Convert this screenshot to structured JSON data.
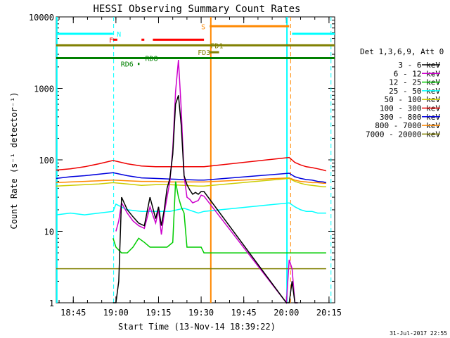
{
  "chart_data": {
    "type": "line",
    "title": "HESSI Observing Summary Count Rates",
    "xlabel": "Start Time (13-Nov-14 18:39:22)",
    "ylabel": "Count Rate (s⁻¹ detector⁻¹)",
    "ylog": true,
    "ylim": [
      1,
      10000
    ],
    "xlim_min": [
      0,
      98
    ],
    "x_ticks": [
      {
        "min": 6,
        "label": "18:45"
      },
      {
        "min": 21,
        "label": "19:00"
      },
      {
        "min": 36,
        "label": "19:15"
      },
      {
        "min": 51,
        "label": "19:30"
      },
      {
        "min": 66,
        "label": "19:45"
      },
      {
        "min": 81,
        "label": "20:00"
      },
      {
        "min": 96,
        "label": "20:15"
      }
    ],
    "y_ticks": [
      {
        "value": 1,
        "label": "1"
      },
      {
        "value": 10,
        "label": "10"
      },
      {
        "value": 100,
        "label": "100"
      },
      {
        "value": 1000,
        "label": "1000"
      },
      {
        "value": 10000,
        "label": "10000"
      }
    ],
    "legend_title": "Det 1,3,6,9, Att 0",
    "legend_placement": "right",
    "series": [
      {
        "name": "3 - 6 keV",
        "color": "#000000",
        "x": [
          20,
          21,
          22,
          23,
          25,
          27,
          29,
          31,
          33,
          35,
          36,
          37,
          38,
          39,
          40,
          41,
          42,
          43,
          44,
          45,
          46,
          47,
          48,
          49,
          50,
          51,
          52,
          81,
          82,
          83,
          84,
          85
        ],
        "y": [
          1,
          1,
          2,
          30,
          20,
          16,
          13,
          12,
          30,
          15,
          22,
          12,
          20,
          40,
          55,
          120,
          600,
          800,
          300,
          60,
          45,
          38,
          33,
          35,
          33,
          36,
          36,
          1,
          1,
          2,
          1,
          1
        ]
      },
      {
        "name": "6 - 12 keV",
        "color": "#cc00cc",
        "x": [
          21,
          22,
          23,
          25,
          27,
          29,
          31,
          33,
          35,
          36,
          37,
          38,
          39,
          40,
          41,
          42,
          43,
          44,
          45,
          46,
          47,
          48,
          49,
          50,
          51,
          52,
          81,
          82,
          83,
          84,
          85
        ],
        "y": [
          10,
          14,
          25,
          18,
          14,
          12,
          11,
          22,
          13,
          20,
          9,
          18,
          30,
          50,
          140,
          900,
          2500,
          500,
          60,
          30,
          28,
          25,
          26,
          27,
          32,
          31,
          1,
          4,
          3,
          1,
          1
        ]
      },
      {
        "name": "12 - 25 keV",
        "color": "#00cc00",
        "x": [
          20,
          21,
          23,
          25,
          27,
          29,
          31,
          33,
          35,
          37,
          39,
          41,
          42,
          43,
          44,
          45,
          46,
          47,
          48,
          49,
          50,
          51,
          52,
          81,
          82,
          84,
          86,
          88,
          90,
          92,
          94,
          95
        ],
        "y": [
          8,
          6,
          5,
          5,
          6,
          8,
          7,
          6,
          6,
          6,
          6,
          7,
          50,
          30,
          22,
          18,
          6,
          6,
          6,
          6,
          6,
          6,
          5,
          5,
          5,
          5,
          5,
          5,
          5,
          5,
          5,
          5
        ]
      },
      {
        "name": "25 - 50 keV",
        "color": "#00ffff",
        "x": [
          0,
          5,
          10,
          15,
          20,
          21,
          25,
          30,
          35,
          40,
          45,
          50,
          52,
          82,
          84,
          86,
          88,
          90,
          92,
          94,
          95
        ],
        "y": [
          17,
          18,
          17,
          18,
          19,
          24,
          20,
          19,
          19,
          19,
          21,
          18,
          19,
          25,
          22,
          20,
          19,
          19,
          18,
          18,
          18
        ]
      },
      {
        "name": "50 - 100 keV",
        "color": "#cccc00",
        "x": [
          0,
          5,
          10,
          15,
          20,
          25,
          30,
          35,
          40,
          45,
          50,
          52,
          82,
          84,
          86,
          88,
          90,
          92,
          94,
          95
        ],
        "y": [
          43,
          44,
          45,
          46,
          48,
          46,
          44,
          45,
          45,
          44,
          43,
          43,
          55,
          50,
          47,
          45,
          44,
          43,
          42,
          42
        ]
      },
      {
        "name": "100 - 300 keV",
        "color": "#ee0000",
        "x": [
          0,
          5,
          10,
          15,
          20,
          25,
          30,
          35,
          40,
          45,
          50,
          52,
          82,
          84,
          86,
          88,
          90,
          92,
          94,
          95
        ],
        "y": [
          72,
          75,
          80,
          88,
          98,
          88,
          82,
          80,
          80,
          80,
          80,
          80,
          108,
          92,
          85,
          80,
          78,
          75,
          72,
          70
        ]
      },
      {
        "name": "300 - 800 keV",
        "color": "#0000dd",
        "x": [
          0,
          5,
          10,
          15,
          20,
          25,
          30,
          35,
          40,
          45,
          50,
          52,
          82,
          84,
          86,
          88,
          90,
          92,
          94,
          95
        ],
        "y": [
          55,
          58,
          60,
          63,
          66,
          60,
          56,
          55,
          54,
          53,
          52,
          52,
          65,
          58,
          55,
          53,
          52,
          50,
          49,
          48
        ]
      },
      {
        "name": "800 - 7000 keV",
        "color": "#ff8800",
        "x": [
          0,
          5,
          10,
          15,
          20,
          25,
          30,
          35,
          40,
          45,
          50,
          52,
          82,
          84,
          86,
          88,
          90,
          92,
          94,
          95
        ],
        "y": [
          48,
          49,
          50,
          51,
          52,
          51,
          50,
          50,
          49,
          49,
          49,
          49,
          56,
          52,
          50,
          49,
          48,
          48,
          47,
          47
        ]
      },
      {
        "name": "7000 - 20000 keV",
        "color": "#808000",
        "x": [
          0,
          5,
          10,
          15,
          20,
          25,
          30,
          35,
          40,
          45,
          50,
          52,
          82,
          84,
          86,
          88,
          90,
          92,
          94,
          95
        ],
        "y": [
          3,
          3,
          3,
          3,
          3,
          3,
          3,
          3,
          3,
          3,
          3,
          3,
          3,
          3,
          3,
          3,
          3,
          3,
          3,
          3
        ]
      }
    ],
    "flag_bars": [
      {
        "label": "N",
        "color": "#00ffff",
        "value": 5800,
        "label_pos": [
          21.3,
          5800
        ],
        "segments": [
          [
            0,
            20
          ],
          [
            83,
            98
          ]
        ]
      },
      {
        "label": "F",
        "color": "#ff0000",
        "value": 4800,
        "label_pos": [
          18.6,
          4800
        ],
        "segments": [
          [
            20,
            21.5
          ],
          [
            30,
            31
          ],
          [
            34,
            52
          ]
        ]
      },
      {
        "label": "S",
        "color": "#ff8800",
        "value": 7400,
        "label_pos": [
          51,
          7400
        ],
        "segments": [
          [
            54,
            82
          ]
        ]
      },
      {
        "label": "FD1",
        "color": "#808000",
        "value": 4000,
        "label_pos": [
          54.3,
          4000
        ],
        "segments": [
          [
            0,
            98
          ]
        ]
      },
      {
        "label": "FD3",
        "color": "#808000",
        "value": 3200,
        "label_pos": [
          49.8,
          3200
        ],
        "segments": [
          [
            54,
            57.3
          ]
        ]
      },
      {
        "label": "RD8",
        "color": "#008000",
        "value": 2650,
        "label_pos": [
          31.3,
          2650
        ],
        "segments": [
          [
            0,
            98
          ]
        ]
      },
      {
        "label": "RD6",
        "color": "#008000",
        "value": 2200,
        "label_pos": [
          22.7,
          2200
        ],
        "segments": [
          [
            28.7,
            29.3
          ]
        ]
      }
    ],
    "vlines_dashed": [
      {
        "min": 20.2,
        "color": "#00ffff"
      },
      {
        "min": 82.5,
        "color": "#ff8800"
      },
      {
        "min": 96.7,
        "color": "#00ffff"
      }
    ],
    "vlines_solid": [
      {
        "min": 0.2,
        "color": "#00ffff"
      },
      {
        "min": 54.4,
        "color": "#ff8800"
      },
      {
        "min": 81.2,
        "color": "#00ffff"
      }
    ]
  },
  "footer": {
    "date_stamp": "31-Jul-2017 22:55"
  }
}
